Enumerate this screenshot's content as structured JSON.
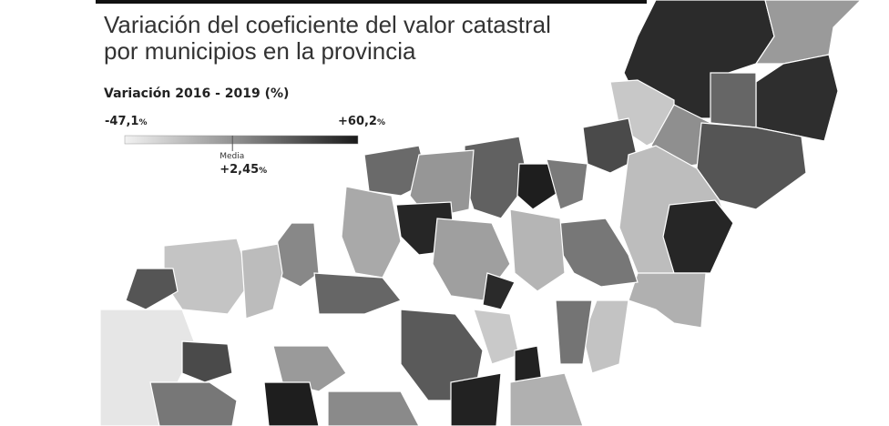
{
  "header": {
    "title_lines": [
      "Variación del coeficiente del valor catastral",
      "por municipios en la provincia"
    ]
  },
  "legend": {
    "title": "Variación 2016 - 2019 (%)",
    "unit": "%",
    "min": {
      "value": -47.1,
      "label": "-47,1"
    },
    "max": {
      "value": 60.2,
      "label": "+60,2"
    },
    "mean": {
      "name": "Media",
      "value": 2.45,
      "label": "+2,45"
    }
  }
}
